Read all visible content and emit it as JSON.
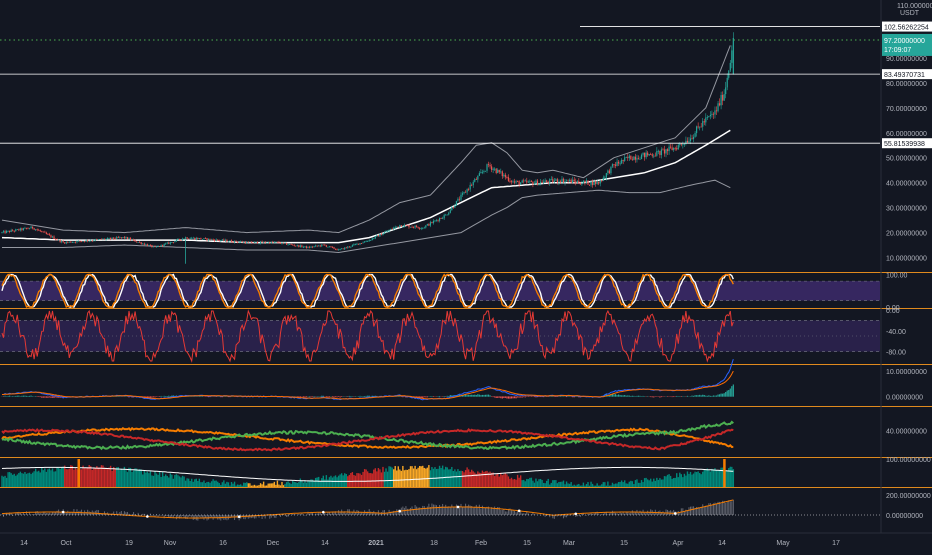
{
  "colors": {
    "background": "#131722",
    "up": "#26a69a",
    "down": "#ef5350",
    "pane_border": "#e08a1e",
    "axis_text": "#b2b5be",
    "stoch_fill": "#3d2a6b",
    "rsi_line": "#e53935",
    "orange": "#f57c00",
    "green": "#4caf50",
    "red": "#c62828",
    "white": "#ffffff"
  },
  "chart_data": [
    {
      "type": "candlestick",
      "pane": "price",
      "currency": "USDT",
      "y_scale_top_label": "110.00000000",
      "ylim": [
        5,
        110
      ],
      "yticks": [
        {
          "v": 90,
          "label": "90.00000000"
        },
        {
          "v": 80,
          "label": "80.00000000"
        },
        {
          "v": 70,
          "label": "70.00000000"
        },
        {
          "v": 60,
          "label": "60.00000000"
        },
        {
          "v": 50,
          "label": "50.00000000"
        },
        {
          "v": 40,
          "label": "40.00000000"
        },
        {
          "v": 30,
          "label": "30.00000000"
        },
        {
          "v": 20,
          "label": "20.00000000"
        },
        {
          "v": 10,
          "label": "10.00000000"
        }
      ],
      "horizontal_levels": [
        {
          "v": 102.56262254,
          "label": "102.56262254",
          "style": "solid"
        },
        {
          "v": 83.49370731,
          "label": "83.49370731",
          "style": "solid"
        },
        {
          "v": 55.81539938,
          "label": "55.81539938",
          "style": "solid"
        },
        {
          "v": 97.2,
          "label": "97.20000000",
          "style": "dotted-green"
        }
      ],
      "last_price_label": "97.20000000",
      "countdown_label": "17:09:07",
      "x_ticks": [
        "14",
        "Oct",
        "19",
        "Nov",
        "16",
        "Dec",
        "14",
        "2021",
        "18",
        "Feb",
        "15",
        "Mar",
        "15",
        "Apr",
        "14",
        "May",
        "17"
      ],
      "close_anchors": [
        [
          0,
          20
        ],
        [
          20,
          22
        ],
        [
          40,
          16
        ],
        [
          60,
          17
        ],
        [
          80,
          18
        ],
        [
          100,
          14
        ],
        [
          120,
          18
        ],
        [
          140,
          17
        ],
        [
          160,
          16
        ],
        [
          180,
          16
        ],
        [
          200,
          14
        ],
        [
          210,
          15
        ],
        [
          220,
          13
        ],
        [
          240,
          17
        ],
        [
          260,
          23
        ],
        [
          275,
          22
        ],
        [
          290,
          27
        ],
        [
          305,
          38
        ],
        [
          318,
          47
        ],
        [
          325,
          44
        ],
        [
          335,
          40
        ],
        [
          350,
          40
        ],
        [
          365,
          41
        ],
        [
          380,
          40
        ],
        [
          390,
          40
        ],
        [
          400,
          47
        ],
        [
          410,
          50
        ],
        [
          420,
          51
        ],
        [
          430,
          52
        ],
        [
          440,
          54
        ],
        [
          450,
          58
        ],
        [
          458,
          64
        ],
        [
          466,
          68
        ],
        [
          472,
          76
        ],
        [
          476,
          88
        ],
        [
          478,
          98
        ]
      ],
      "bollinger_upper_anchors": [
        [
          0,
          25
        ],
        [
          40,
          21
        ],
        [
          80,
          20
        ],
        [
          120,
          22
        ],
        [
          160,
          20
        ],
        [
          200,
          21
        ],
        [
          220,
          20
        ],
        [
          240,
          25
        ],
        [
          260,
          32
        ],
        [
          280,
          35
        ],
        [
          300,
          48
        ],
        [
          310,
          55
        ],
        [
          320,
          56
        ],
        [
          330,
          52
        ],
        [
          340,
          45
        ],
        [
          350,
          44
        ],
        [
          360,
          45
        ],
        [
          380,
          42
        ],
        [
          400,
          50
        ],
        [
          420,
          54
        ],
        [
          440,
          58
        ],
        [
          460,
          70
        ],
        [
          476,
          95
        ]
      ],
      "bollinger_middle_anchors": [
        [
          0,
          18
        ],
        [
          40,
          17
        ],
        [
          80,
          17
        ],
        [
          120,
          17
        ],
        [
          160,
          16
        ],
        [
          200,
          16
        ],
        [
          220,
          16
        ],
        [
          240,
          18
        ],
        [
          260,
          22
        ],
        [
          280,
          26
        ],
        [
          300,
          32
        ],
        [
          320,
          38
        ],
        [
          340,
          39
        ],
        [
          360,
          40
        ],
        [
          380,
          40
        ],
        [
          400,
          42
        ],
        [
          420,
          44
        ],
        [
          440,
          48
        ],
        [
          460,
          55
        ],
        [
          476,
          61
        ]
      ],
      "bollinger_lower_anchors": [
        [
          0,
          14
        ],
        [
          40,
          14
        ],
        [
          80,
          15
        ],
        [
          120,
          14
        ],
        [
          160,
          13
        ],
        [
          200,
          13
        ],
        [
          220,
          12
        ],
        [
          240,
          14
        ],
        [
          260,
          16
        ],
        [
          280,
          18
        ],
        [
          300,
          20
        ],
        [
          320,
          27
        ],
        [
          330,
          30
        ],
        [
          340,
          34
        ],
        [
          350,
          35
        ],
        [
          370,
          36
        ],
        [
          390,
          37
        ],
        [
          410,
          36
        ],
        [
          430,
          36
        ],
        [
          450,
          39
        ],
        [
          466,
          41
        ],
        [
          476,
          38
        ]
      ]
    },
    {
      "type": "line",
      "pane": "stoch_rsi",
      "ylim": [
        -3,
        102
      ],
      "yticks": [
        {
          "v": 100,
          "label": "100.00"
        },
        {
          "v": 0,
          "label": "0.00"
        }
      ],
      "band": [
        20,
        80
      ],
      "series": [
        {
          "color": "#ffffff",
          "period": 26,
          "phase": 0
        },
        {
          "color": "#f57c00",
          "period": 26,
          "phase": 1.4
        }
      ]
    },
    {
      "type": "line",
      "pane": "williams_r",
      "ylim": [
        -100,
        0
      ],
      "yticks": [
        {
          "v": 0,
          "label": "0.00"
        },
        {
          "v": -40,
          "label": "-40.00"
        },
        {
          "v": -80,
          "label": "-80.00"
        }
      ],
      "band": [
        -80,
        -20
      ],
      "series": [
        {
          "color": "#e53935"
        }
      ]
    },
    {
      "type": "histogram+line",
      "pane": "macd",
      "ylim": [
        -3,
        12
      ],
      "yticks": [
        {
          "v": 10,
          "label": "10.00000000"
        },
        {
          "v": 0,
          "label": "0.00000000"
        }
      ]
    },
    {
      "type": "line",
      "pane": "dmi",
      "ylim": [
        0,
        75
      ],
      "yticks": [
        {
          "v": 40,
          "label": "40.00000000"
        }
      ],
      "series": [
        {
          "color": "#c62828",
          "name": ""
        },
        {
          "color": "#4caf50",
          "name": ""
        },
        {
          "color": "#f57c00",
          "name": ""
        }
      ]
    },
    {
      "type": "histogram+line",
      "pane": "volume_osc",
      "ylim": [
        0,
        100
      ],
      "yticks": [
        {
          "v": 100,
          "label": "100.00000000"
        }
      ]
    },
    {
      "type": "histogram+line",
      "pane": "momentum",
      "ylim": [
        -150,
        260
      ],
      "yticks": [
        {
          "v": 200,
          "label": "200.00000000"
        },
        {
          "v": 0,
          "label": "0.00000000"
        }
      ]
    }
  ]
}
